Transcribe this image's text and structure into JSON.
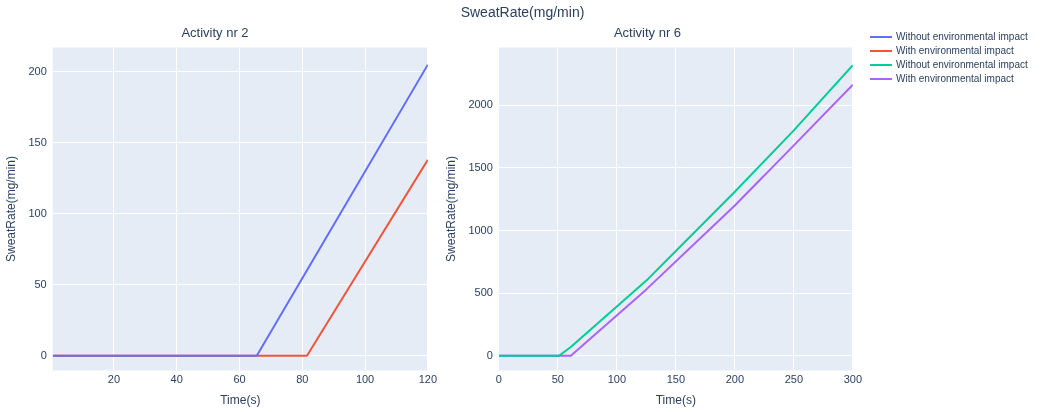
{
  "chart_data": [
    {
      "type": "line",
      "title": "Activity nr 2",
      "xlabel": "Time(s)",
      "ylabel": "SweatRate(mg/min)",
      "annotations": [
        "SweatRate(mg/min)"
      ],
      "xlim": [
        0.5,
        120
      ],
      "xticks": [
        20,
        40,
        60,
        80,
        100,
        120
      ],
      "ylim": [
        -10.3,
        217
      ],
      "yticks": [
        0,
        50,
        100,
        150,
        200
      ],
      "grid": true,
      "legend": "right",
      "series": [
        {
          "name": "Without environmental impact",
          "color": "#636efa",
          "x": [
            0.5,
            65.5,
            120
          ],
          "values": [
            0,
            0,
            205
          ]
        },
        {
          "name": "With environmental impact",
          "color": "#ef553b",
          "x": [
            0.5,
            81.5,
            120
          ],
          "values": [
            0,
            0,
            138
          ]
        }
      ]
    },
    {
      "type": "line",
      "title": "Activity nr 6",
      "xlabel": "Time(s)",
      "ylabel": "SweatRate(mg/min)",
      "xlim": [
        0,
        300
      ],
      "xticks": [
        0,
        50,
        100,
        150,
        200,
        250,
        300
      ],
      "ylim": [
        -117,
        2461
      ],
      "yticks": [
        0,
        500,
        1000,
        1500,
        2000
      ],
      "grid": true,
      "legend": "right",
      "series": [
        {
          "name": "Without environmental impact",
          "color": "#00cc96",
          "x": [
            0,
            51,
            61,
            125,
            200,
            250,
            300
          ],
          "values": [
            0,
            0,
            70,
            600,
            1310,
            1800,
            2320
          ]
        },
        {
          "name": "With environmental impact",
          "color": "#ab63fa",
          "x": [
            0,
            61,
            125,
            200,
            250,
            300
          ],
          "values": [
            0,
            0,
            530,
            1200,
            1680,
            2165
          ]
        }
      ]
    }
  ]
}
